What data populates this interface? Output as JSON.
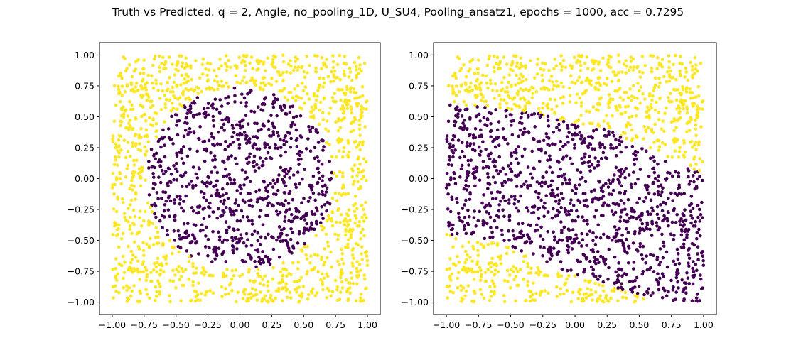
{
  "figure": {
    "title": "Truth vs Predicted. q = 2, Angle, no_pooling_1D, U_SU4, Pooling_ansatz1, epochs = 1000, acc = 0.7295"
  },
  "colors": {
    "class_outside": "#fde725",
    "class_inside": "#440154",
    "axes": "#000000",
    "background": "#ffffff"
  },
  "chart_data": [
    {
      "type": "scatter",
      "name": "truth",
      "title": "",
      "xlabel": "",
      "ylabel": "",
      "xlim": [
        -1.1,
        1.1
      ],
      "ylim": [
        -1.1,
        1.1
      ],
      "xticks": [
        -1.0,
        -0.75,
        -0.5,
        -0.25,
        0.0,
        0.25,
        0.5,
        0.75,
        1.0
      ],
      "yticks": [
        -1.0,
        -0.75,
        -0.5,
        -0.25,
        0.0,
        0.25,
        0.5,
        0.75,
        1.0
      ],
      "xtick_labels": [
        "−1.00",
        "−0.75",
        "−0.50",
        "−0.25",
        "0.00",
        "0.25",
        "0.50",
        "0.75",
        "1.00"
      ],
      "ytick_labels": [
        "−1.00",
        "−0.75",
        "−0.50",
        "−0.25",
        "0.00",
        "0.25",
        "0.50",
        "0.75",
        "1.00"
      ],
      "grid": false,
      "n_points": 2000,
      "x_range": [
        -1.0,
        1.0
      ],
      "y_range": [
        -1.0,
        1.0
      ],
      "classes": [
        {
          "label": 1,
          "color": "#440154",
          "region": "disk",
          "center": [
            0.0,
            0.0
          ],
          "radius": 0.735
        },
        {
          "label": 0,
          "color": "#fde725",
          "region": "outside disk"
        }
      ]
    },
    {
      "type": "scatter",
      "name": "predicted",
      "title": "",
      "xlabel": "",
      "ylabel": "",
      "xlim": [
        -1.1,
        1.1
      ],
      "ylim": [
        -1.1,
        1.1
      ],
      "xticks": [
        -1.0,
        -0.75,
        -0.5,
        -0.25,
        0.0,
        0.25,
        0.5,
        0.75,
        1.0
      ],
      "yticks": [
        -1.0,
        -0.75,
        -0.5,
        -0.25,
        0.0,
        0.25,
        0.5,
        0.75,
        1.0
      ],
      "xtick_labels": [
        "−1.00",
        "−0.75",
        "−0.50",
        "−0.25",
        "0.00",
        "0.25",
        "0.50",
        "0.75",
        "1.00"
      ],
      "ytick_labels": [
        "−1.00",
        "−0.75",
        "−0.50",
        "−0.25",
        "0.00",
        "0.25",
        "0.50",
        "0.75",
        "1.00"
      ],
      "grid": false,
      "n_points": 2000,
      "x_range": [
        -1.0,
        1.0
      ],
      "y_range": [
        -1.0,
        1.0
      ],
      "classes": [
        {
          "label": 1,
          "color": "#440154",
          "region": "band below upper boundary and above lower boundary"
        },
        {
          "label": 0,
          "color": "#fde725",
          "region": "top-left, top-right and bottom-left corners"
        }
      ],
      "upper_boundary": [
        [
          -1.0,
          0.6
        ],
        [
          -0.65,
          0.58
        ],
        [
          -0.3,
          0.53
        ],
        [
          0.0,
          0.44
        ],
        [
          0.25,
          0.4
        ],
        [
          0.45,
          0.3
        ],
        [
          0.62,
          0.2
        ],
        [
          0.75,
          0.12
        ],
        [
          0.9,
          0.08
        ],
        [
          1.0,
          0.05
        ]
      ],
      "lower_boundary": [
        [
          -1.0,
          -0.45
        ],
        [
          -0.6,
          -0.52
        ],
        [
          -0.3,
          -0.65
        ],
        [
          -0.1,
          -0.75
        ],
        [
          0.1,
          -0.82
        ],
        [
          0.3,
          -0.88
        ],
        [
          0.45,
          -0.93
        ],
        [
          0.6,
          -1.0
        ],
        [
          1.0,
          -1.0
        ]
      ]
    }
  ]
}
